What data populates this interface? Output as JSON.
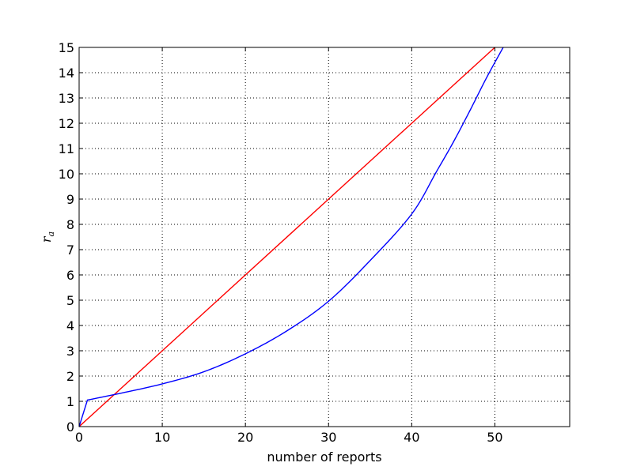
{
  "chart_data": {
    "type": "line",
    "title": "",
    "xlabel": "number of reports",
    "ylabel": "r",
    "ylabel_subscript": "a",
    "xlim": [
      0,
      59
    ],
    "ylim": [
      0,
      15
    ],
    "x_ticks": [
      0,
      10,
      20,
      30,
      40,
      50
    ],
    "y_ticks": [
      0,
      1,
      2,
      3,
      4,
      5,
      6,
      7,
      8,
      9,
      10,
      11,
      12,
      13,
      14,
      15
    ],
    "grid": true,
    "legend": "none",
    "series": [
      {
        "color": "#ff0000",
        "x": [
          0,
          50
        ],
        "y": [
          0,
          15
        ]
      },
      {
        "color": "#0000ff",
        "x": [
          0,
          1,
          5,
          10,
          15,
          20,
          25,
          30,
          35,
          40,
          43,
          45,
          47,
          49,
          51
        ],
        "y": [
          0,
          1.05,
          1.32,
          1.69,
          2.17,
          2.88,
          3.79,
          4.96,
          6.57,
          8.41,
          10.1,
          11.25,
          12.5,
          13.8,
          15
        ]
      }
    ]
  }
}
